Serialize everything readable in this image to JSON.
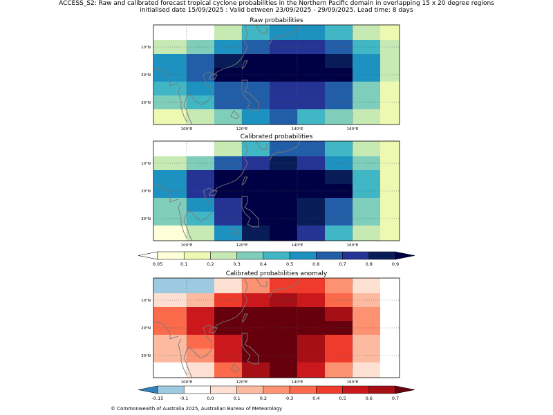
{
  "title": {
    "line1": "ACCESS_S2: Raw and calibrated forecast tropical cyclone probabilities in the Northern Pacific domain in overlapping 15 x 20 degree regions",
    "line2": "initialised date 15/09/2025 :  Valid between 23/09/2025 - 29/09/2025. Lead time: 8 days"
  },
  "footer": "© Commonwealth of Australia 2025, Australian Bureau of Meteorology",
  "chart_data": [
    {
      "type": "heatmap",
      "title": "Raw probabilities",
      "lon_ticks": [
        "100°E",
        "120°E",
        "140°E",
        "160°E"
      ],
      "lat_ticks": [
        "30°N",
        "20°N",
        "10°N"
      ],
      "extent": {
        "lon": [
          88,
          177
        ],
        "lat": [
          2,
          38
        ]
      },
      "grid_lines": {
        "lon": [
          100,
          120,
          140,
          160
        ],
        "lat": [
          10,
          20,
          30
        ]
      },
      "cell_lon_edges": [
        88,
        100,
        110,
        120,
        130,
        140,
        150,
        160,
        170,
        177
      ],
      "cell_lat_edges": [
        38,
        32.5,
        27.5,
        22.5,
        17.5,
        12.5,
        7.5,
        2
      ],
      "values": [
        [
          0.02,
          0.02,
          0.25,
          0.45,
          0.55,
          0.55,
          0.45,
          0.25,
          0.15
        ],
        [
          0.25,
          0.35,
          0.55,
          0.65,
          0.75,
          0.75,
          0.65,
          0.45,
          0.25
        ],
        [
          0.55,
          0.65,
          0.85,
          0.95,
          0.95,
          0.95,
          0.85,
          0.55,
          0.25
        ],
        [
          0.55,
          0.65,
          0.95,
          0.95,
          0.95,
          0.95,
          0.95,
          0.55,
          0.25
        ],
        [
          0.45,
          0.55,
          0.65,
          0.65,
          0.75,
          0.75,
          0.65,
          0.35,
          0.15
        ],
        [
          0.35,
          0.45,
          0.65,
          0.65,
          0.75,
          0.75,
          0.65,
          0.35,
          0.15
        ],
        [
          0.15,
          0.25,
          0.35,
          0.55,
          0.65,
          0.45,
          0.35,
          0.25,
          0.15
        ]
      ]
    },
    {
      "type": "heatmap",
      "title": "Calibrated probabilities",
      "lon_ticks": [
        "100°E",
        "120°E",
        "140°E",
        "160°E"
      ],
      "lat_ticks": [
        "30°N",
        "20°N",
        "10°N"
      ],
      "extent": {
        "lon": [
          88,
          177
        ],
        "lat": [
          2,
          38
        ]
      },
      "grid_lines": {
        "lon": [
          100,
          120,
          140,
          160
        ],
        "lat": [
          10,
          20,
          30
        ]
      },
      "cell_lon_edges": [
        88,
        100,
        110,
        120,
        130,
        140,
        150,
        160,
        170,
        177
      ],
      "cell_lat_edges": [
        38,
        32.5,
        27.5,
        22.5,
        17.5,
        12.5,
        7.5,
        2
      ],
      "values": [
        [
          0.02,
          0.02,
          0.25,
          0.45,
          0.65,
          0.65,
          0.45,
          0.25,
          0.15
        ],
        [
          0.25,
          0.35,
          0.65,
          0.75,
          0.85,
          0.75,
          0.55,
          0.35,
          0.15
        ],
        [
          0.55,
          0.75,
          0.95,
          0.95,
          0.95,
          0.95,
          0.85,
          0.45,
          0.15
        ],
        [
          0.55,
          0.75,
          0.95,
          0.95,
          0.95,
          0.95,
          0.95,
          0.45,
          0.15
        ],
        [
          0.35,
          0.55,
          0.75,
          0.95,
          0.95,
          0.85,
          0.65,
          0.35,
          0.15
        ],
        [
          0.35,
          0.45,
          0.75,
          0.95,
          0.95,
          0.85,
          0.65,
          0.35,
          0.15
        ],
        [
          0.07,
          0.25,
          0.55,
          0.85,
          0.95,
          0.75,
          0.45,
          0.25,
          0.15
        ]
      ]
    },
    {
      "type": "heatmap",
      "title": "Calibrated probabilities anomaly",
      "lon_ticks": [
        "100°E",
        "120°E",
        "140°E",
        "160°E"
      ],
      "lat_ticks": [
        "30°N",
        "20°N",
        "10°N"
      ],
      "extent": {
        "lon": [
          88,
          177
        ],
        "lat": [
          2,
          38
        ]
      },
      "grid_lines": {
        "lon": [
          100,
          120,
          140,
          160
        ],
        "lat": [
          10,
          20,
          30
        ]
      },
      "cell_lon_edges": [
        88,
        100,
        110,
        120,
        130,
        140,
        150,
        160,
        170,
        177
      ],
      "cell_lat_edges": [
        38,
        32.5,
        27.5,
        22.5,
        17.5,
        12.5,
        7.5,
        2
      ],
      "values": [
        [
          -0.13,
          -0.13,
          0.05,
          0.25,
          0.45,
          0.45,
          0.25,
          0.05,
          -0.05
        ],
        [
          0.05,
          0.15,
          0.45,
          0.55,
          0.65,
          0.55,
          0.35,
          0.15,
          -0.05
        ],
        [
          0.35,
          0.55,
          0.75,
          0.75,
          0.75,
          0.75,
          0.65,
          0.25,
          -0.05
        ],
        [
          0.35,
          0.55,
          0.75,
          0.75,
          0.75,
          0.75,
          0.75,
          0.25,
          -0.05
        ],
        [
          0.15,
          0.35,
          0.55,
          0.75,
          0.75,
          0.65,
          0.45,
          0.15,
          -0.05
        ],
        [
          0.15,
          0.25,
          0.55,
          0.75,
          0.75,
          0.65,
          0.45,
          0.15,
          -0.05
        ],
        [
          -0.08,
          0.05,
          0.35,
          0.65,
          0.75,
          0.55,
          0.25,
          0.05,
          -0.05
        ]
      ]
    }
  ],
  "colorbars": [
    {
      "ticks": [
        "0.05",
        "0.1",
        "0.2",
        "0.3",
        "0.4",
        "0.5",
        "0.6",
        "0.7",
        "0.8",
        "0.9"
      ],
      "colors": [
        "#ffffd9",
        "#edf8b1",
        "#c7e9b4",
        "#7fcdbb",
        "#41b6c4",
        "#1d91c0",
        "#225ea8",
        "#253494",
        "#081d58"
      ],
      "under_color": "#ffffff",
      "over_color": "#000045"
    },
    {
      "ticks": [
        "-0.15",
        "-0.1",
        "0.0",
        "0.1",
        "0.2",
        "0.3",
        "0.4",
        "0.5",
        "0.6",
        "0.7"
      ],
      "colors": [
        "#9ecae1",
        "#ffffff",
        "#fee0d2",
        "#fcbba1",
        "#fc9272",
        "#fb6a4a",
        "#ef3b2c",
        "#cb181d",
        "#a50f15"
      ],
      "under_color": "#3182bd",
      "over_color": "#67000d"
    }
  ]
}
